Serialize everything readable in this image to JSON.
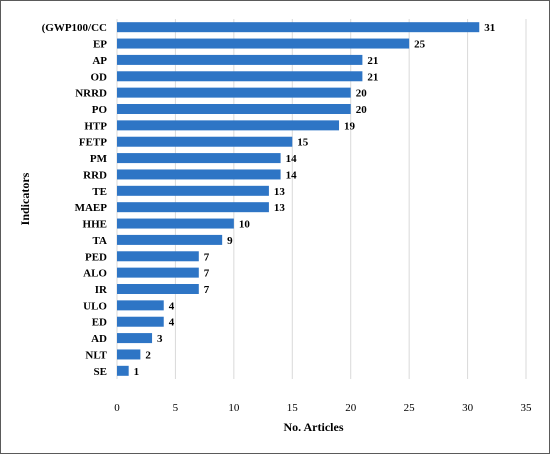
{
  "chart_data": {
    "type": "bar",
    "orientation": "horizontal",
    "categories": [
      "(GWP100/CC",
      "EP",
      "AP",
      "OD",
      "NRRD",
      "PO",
      "HTP",
      "FETP",
      "PM",
      "RRD",
      "TE",
      "MAEP",
      "HHE",
      "TA",
      "PED",
      "ALO",
      "IR",
      "ULO",
      "ED",
      "AD",
      "NLT",
      "SE"
    ],
    "values": [
      31,
      25,
      21,
      21,
      20,
      20,
      19,
      15,
      14,
      14,
      13,
      13,
      10,
      9,
      7,
      7,
      7,
      4,
      4,
      3,
      2,
      1
    ],
    "xlabel": "No. Articles",
    "ylabel": "Indicators",
    "xlim": [
      0,
      35
    ],
    "xticks": [
      0,
      5,
      10,
      15,
      20,
      25,
      30,
      35
    ],
    "grid": "vertical",
    "bar_color": "#2e75c5",
    "data_labels": true
  }
}
